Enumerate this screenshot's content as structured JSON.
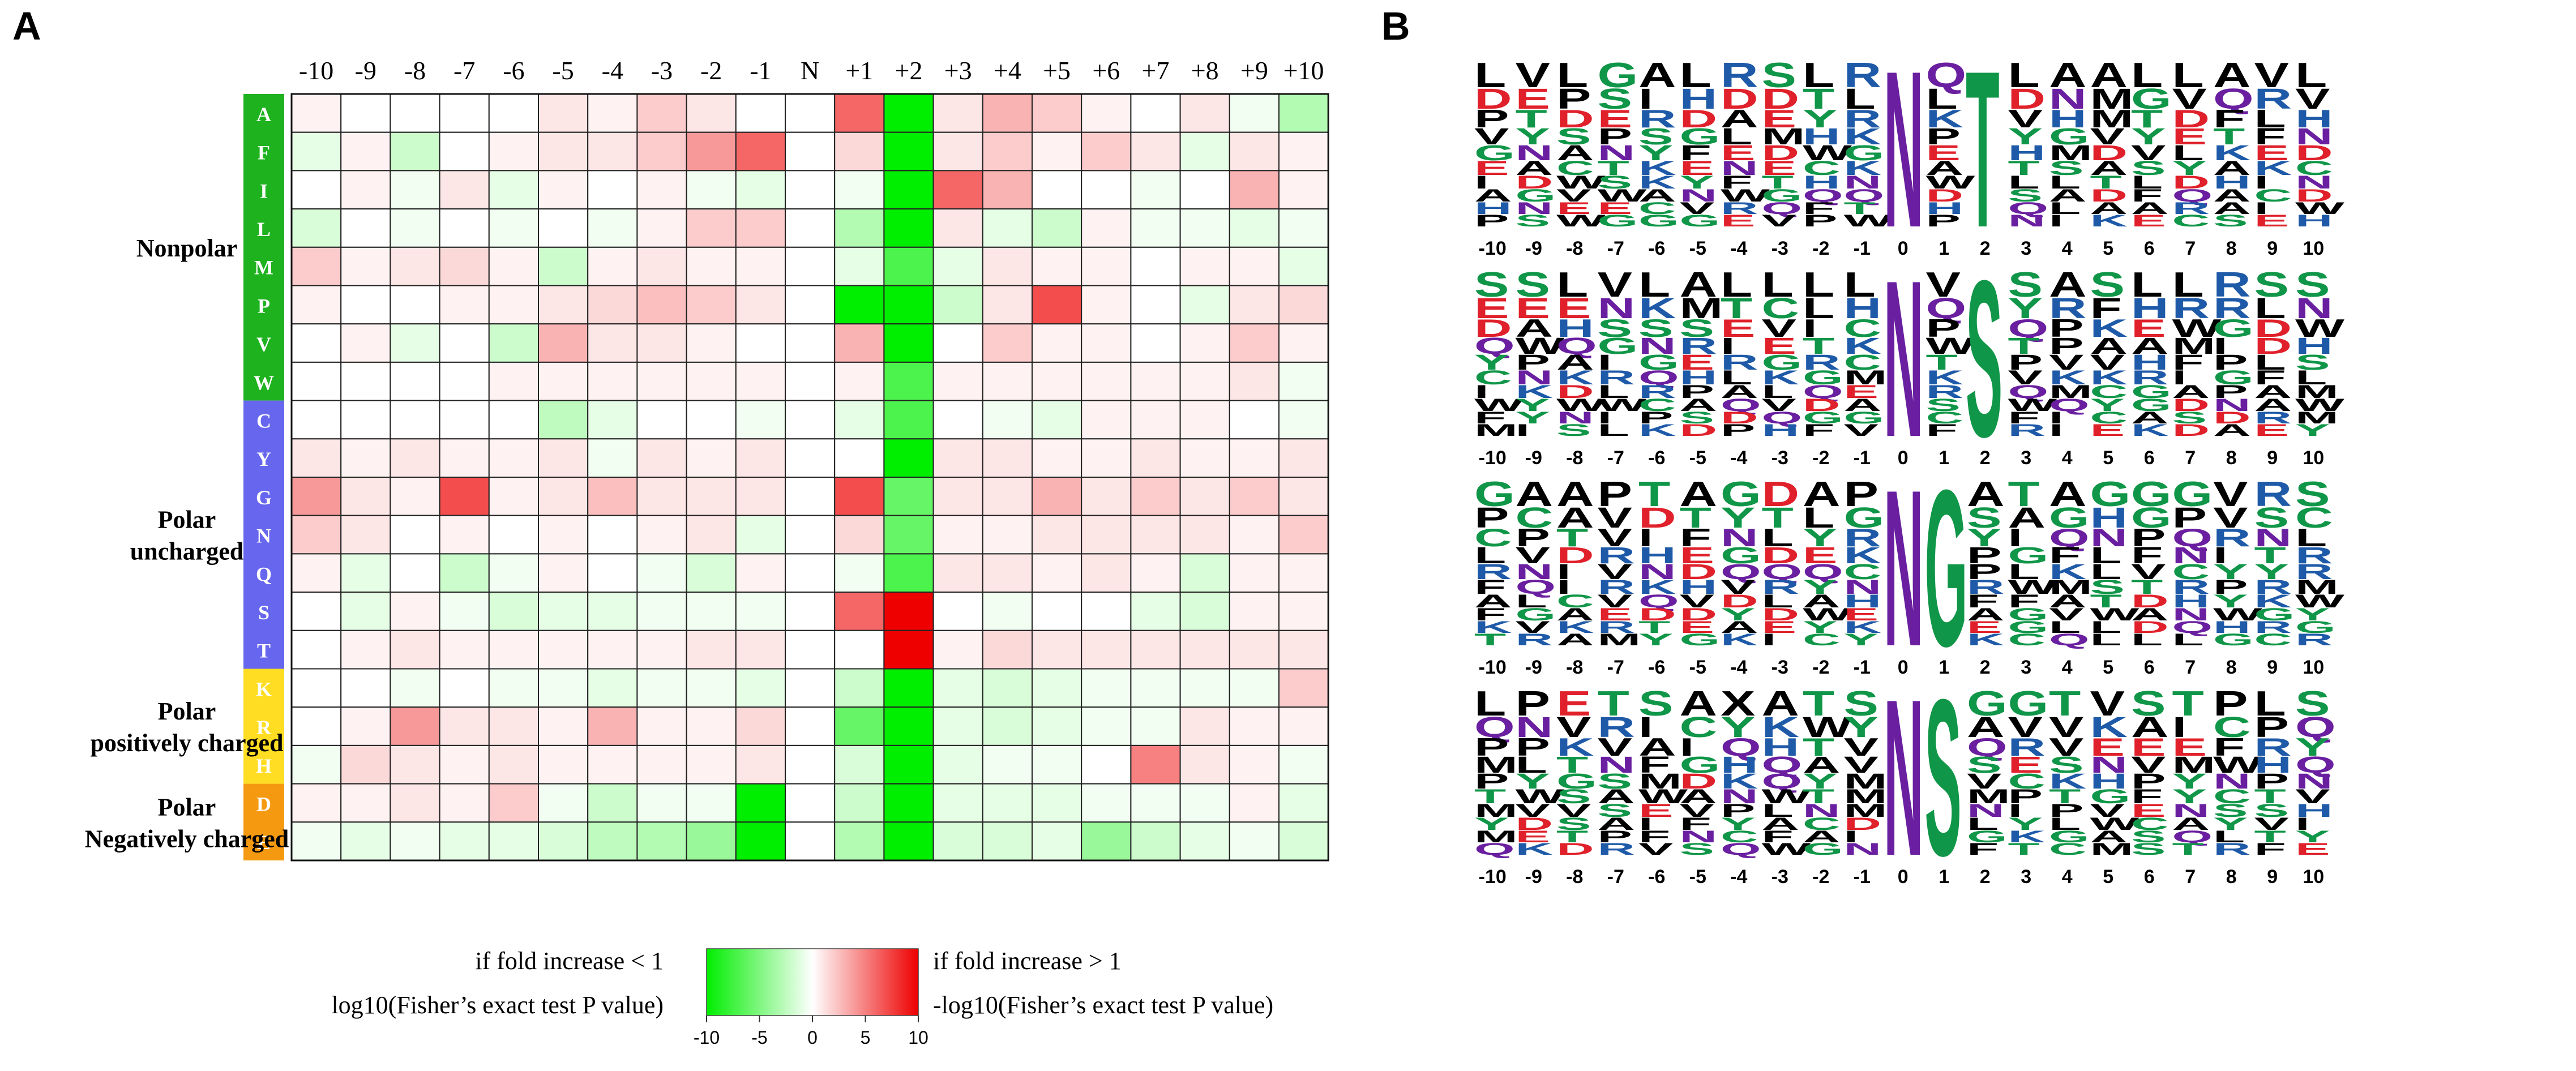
{
  "panels": {
    "a": "A",
    "b": "B"
  },
  "chart_data": [
    {
      "type": "heatmap",
      "panel": "A",
      "columns": [
        "-10",
        "-9",
        "-8",
        "-7",
        "-6",
        "-5",
        "-4",
        "-3",
        "-2",
        "-1",
        "N",
        "+1",
        "+2",
        "+3",
        "+4",
        "+5",
        "+6",
        "+7",
        "+8",
        "+9",
        "+10"
      ],
      "rows": [
        "A",
        "F",
        "I",
        "L",
        "M",
        "P",
        "V",
        "W",
        "C",
        "Y",
        "G",
        "N",
        "Q",
        "S",
        "T",
        "K",
        "R",
        "H",
        "D",
        "E"
      ],
      "groups": [
        {
          "label": "Nonpolar",
          "rows": [
            "A",
            "F",
            "I",
            "L",
            "M",
            "P",
            "V",
            "W"
          ],
          "color": "#1FB21F"
        },
        {
          "label": "Polar uncharged",
          "lines": [
            "Polar",
            "uncharged"
          ],
          "rows": [
            "C",
            "Y",
            "G",
            "N",
            "Q",
            "S",
            "T"
          ],
          "color": "#6666EE"
        },
        {
          "label": "Polar positively charged",
          "lines": [
            "Polar",
            "positively charged"
          ],
          "rows": [
            "K",
            "R",
            "H"
          ],
          "color": "#FFDD22"
        },
        {
          "label": "Polar Negatively charged",
          "lines": [
            "Polar",
            "Negatively charged"
          ],
          "rows": [
            "D",
            "E"
          ],
          "color": "#F59A10"
        }
      ],
      "values": [
        [
          0.5,
          0,
          0,
          0,
          0,
          1,
          0.5,
          2,
          1,
          0,
          0,
          6,
          -10,
          1,
          3,
          2,
          0.5,
          0,
          1,
          -0.5,
          -3
        ],
        [
          -1,
          0.5,
          -2,
          0,
          0.5,
          1,
          1,
          2,
          4,
          6,
          0,
          1.5,
          -10,
          1,
          2,
          0.5,
          2,
          1,
          -1,
          1,
          0.5
        ],
        [
          0,
          0.5,
          -0.5,
          1,
          -1,
          0.5,
          0,
          0.5,
          -0.5,
          -1,
          0,
          -0.5,
          -10,
          6,
          3,
          0,
          0,
          -0.5,
          0,
          3,
          0.5
        ],
        [
          -1.5,
          0,
          -0.5,
          0,
          -0.5,
          0,
          -0.5,
          0.5,
          2,
          2,
          0,
          -3,
          -10,
          1,
          -1,
          -2,
          0.5,
          -0.5,
          -0.5,
          -1,
          -0.5
        ],
        [
          2,
          0.5,
          1,
          1.5,
          0.5,
          -2,
          0.5,
          1,
          0.5,
          0.5,
          0,
          -1,
          -7,
          -1,
          1,
          0.5,
          0.5,
          0,
          0.5,
          0.5,
          -1
        ],
        [
          0.5,
          0,
          0,
          0.5,
          0.5,
          1,
          1.5,
          2.5,
          2,
          1,
          0,
          -10,
          -10,
          -2,
          1,
          7,
          0.5,
          0,
          -1,
          1,
          1.5
        ],
        [
          0,
          0.5,
          -1,
          0,
          -2,
          3,
          1,
          1,
          0.5,
          0,
          0,
          3,
          -10,
          0,
          2,
          0.5,
          0.5,
          0,
          0.5,
          2,
          0.5
        ],
        [
          0,
          0,
          0,
          0,
          0.5,
          0.5,
          0.5,
          0.5,
          0.5,
          0.5,
          0,
          0.5,
          -7,
          0.5,
          0.5,
          0.5,
          0.5,
          0.5,
          0.5,
          1,
          -0.5
        ],
        [
          0,
          0,
          0,
          0,
          0,
          -2.5,
          -1,
          0,
          0,
          -0.5,
          0,
          -1,
          -7,
          0,
          -0.5,
          -1,
          0.5,
          0.5,
          0.5,
          0,
          -0.5
        ],
        [
          1,
          0.5,
          1,
          0.5,
          0.5,
          1,
          -0.5,
          1,
          0.5,
          1,
          0,
          0,
          -10,
          1,
          1,
          0.5,
          0.5,
          1,
          0.5,
          0.5,
          1
        ],
        [
          4,
          1,
          0.5,
          7,
          0.5,
          1,
          2.5,
          1,
          1,
          1,
          0,
          7,
          -6,
          1,
          1,
          3,
          1,
          2,
          1,
          2,
          1
        ],
        [
          2,
          1,
          0,
          0.5,
          0,
          0.5,
          0,
          0.5,
          1,
          -1,
          0,
          1.5,
          -6,
          0.5,
          0.5,
          1,
          1,
          1,
          1,
          0.5,
          2
        ],
        [
          0.5,
          -1,
          0,
          -2,
          -0.5,
          0.5,
          0,
          -0.5,
          -1.5,
          0.5,
          0,
          -0.5,
          -7,
          1,
          1,
          0.5,
          1,
          0.5,
          -1.5,
          0.5,
          0.5
        ],
        [
          0,
          -1,
          0.5,
          -0.5,
          -1.5,
          -1,
          -1,
          -0.5,
          -0.5,
          -0.5,
          0,
          6,
          10,
          0,
          -0.5,
          0,
          0,
          -1,
          -1.5,
          0.5,
          0.5
        ],
        [
          0,
          0.5,
          1,
          0.5,
          0.5,
          0.5,
          0.5,
          0.5,
          1,
          1,
          0,
          0,
          10,
          0.5,
          1.5,
          1,
          1,
          1,
          1,
          1,
          1
        ],
        [
          0,
          0,
          -0.5,
          0,
          -0.5,
          -0.5,
          -1,
          -0.5,
          -0.5,
          -1,
          0,
          -2,
          -10,
          -1,
          -1.5,
          -1,
          -0.5,
          -0.5,
          -0.5,
          -0.5,
          2
        ],
        [
          0,
          0.5,
          4,
          1,
          1,
          0.5,
          3,
          0.5,
          0.5,
          1.5,
          0,
          -6,
          -10,
          -1,
          -1.5,
          -1,
          -0.5,
          -0.5,
          1,
          0.5,
          0.5
        ],
        [
          -0.5,
          1.5,
          1,
          0.5,
          1,
          0.5,
          0.5,
          0.5,
          0.5,
          1,
          0,
          -1.5,
          -10,
          -1,
          -0.5,
          -0.5,
          0,
          5,
          1,
          0.5,
          -0.5
        ],
        [
          0.5,
          0.5,
          1,
          0.5,
          2,
          -0.5,
          -2,
          -0.5,
          -0.5,
          -10,
          0,
          -2,
          -10,
          -1,
          -1,
          -1,
          -0.5,
          -0.5,
          -0.5,
          0.5,
          -1
        ],
        [
          -0.5,
          -1,
          -0.5,
          -1,
          -1,
          -1.5,
          -2.5,
          -3,
          -4,
          -10,
          0,
          -3,
          -10,
          -1.5,
          -1.5,
          -1,
          -4,
          -2,
          -1,
          -0.5,
          -1.5
        ]
      ],
      "colorbar": {
        "min": -10,
        "max": 10,
        "ticks": [
          "-10",
          "-5",
          "0",
          "5",
          "10"
        ],
        "colors": [
          "#00EE00",
          "#FFFFFF",
          "#EE0000"
        ]
      },
      "legend": {
        "left_line1": "if fold increase < 1",
        "left_line2": "log10(Fisher’s exact test P value)",
        "right_line1": "if fold increase > 1",
        "right_line2": "-log10(Fisher’s exact test P value)"
      }
    },
    {
      "type": "sequence-logo",
      "panel": "B",
      "x_ticks": [
        "-10",
        "-9",
        "-8",
        "-7",
        "-6",
        "-5",
        "-4",
        "-3",
        "-2",
        "-1",
        "0",
        "1",
        "2",
        "3",
        "4",
        "5",
        "6",
        "7",
        "8",
        "9",
        "10"
      ],
      "residue_colors": {
        "hydrophobic": "#000000",
        "polar": "#109648",
        "basic": "#1E5AA8",
        "acidic": "#E0202A",
        "amide": "#6A1FA0"
      },
      "logos": [
        {
          "motif": "NXT",
          "tops": [
            "L",
            "V",
            "L",
            "G",
            "A",
            "L",
            "R",
            "S",
            "L",
            "R",
            "N",
            "Q",
            "T",
            "L",
            "A",
            "A",
            "L",
            "L",
            "A",
            "V",
            "L"
          ],
          "fixed": {
            "0": "N",
            "2": "T"
          }
        },
        {
          "motif": "NXS",
          "tops": [
            "S",
            "S",
            "L",
            "V",
            "L",
            "A",
            "L",
            "L",
            "L",
            "L",
            "N",
            "V",
            "S",
            "S",
            "A",
            "S",
            "L",
            "L",
            "R",
            "S",
            "S"
          ],
          "fixed": {
            "0": "N",
            "2": "S"
          }
        },
        {
          "motif": "NG",
          "tops": [
            "G",
            "A",
            "A",
            "P",
            "T",
            "A",
            "G",
            "D",
            "A",
            "P",
            "N",
            "G",
            "A",
            "T",
            "A",
            "G",
            "G",
            "G",
            "V",
            "R",
            "S"
          ],
          "fixed": {
            "0": "N",
            "1": "G"
          }
        },
        {
          "motif": "NS",
          "tops": [
            "L",
            "P",
            "E",
            "T",
            "S",
            "A",
            "X",
            "A",
            "T",
            "S",
            "N",
            "S",
            "G",
            "G",
            "T",
            "V",
            "S",
            "T",
            "P",
            "L",
            "S"
          ],
          "fixed": {
            "0": "N",
            "1": "S"
          }
        }
      ]
    }
  ]
}
